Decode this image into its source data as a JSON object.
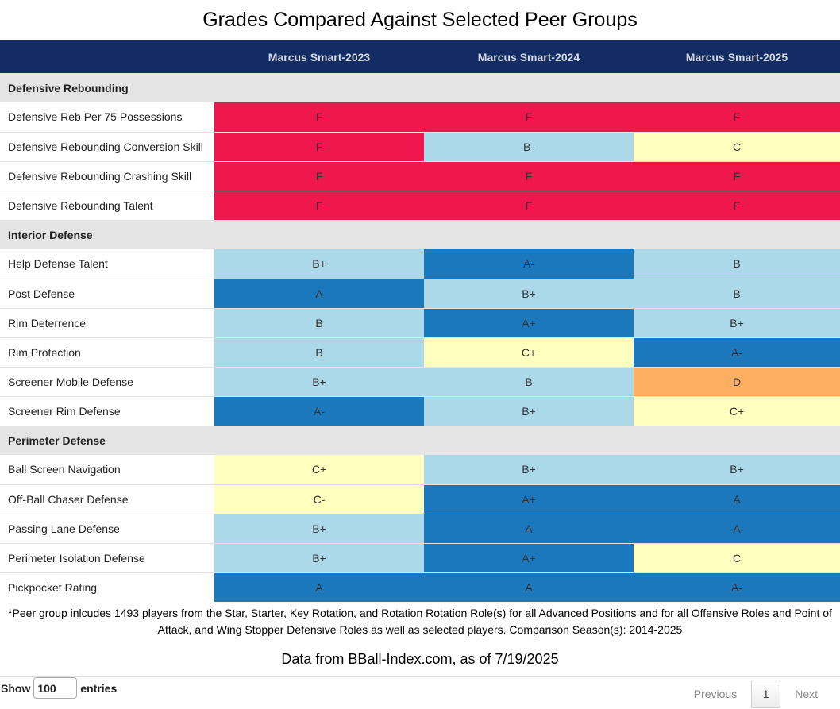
{
  "title": "Grades Compared Against Selected Peer Groups",
  "columns": [
    "",
    "Marcus Smart-2023",
    "Marcus Smart-2024",
    "Marcus Smart-2025"
  ],
  "grade_colors": {
    "F": "#f0174f",
    "D": "#fdae61",
    "C-": "#ffffbf",
    "C": "#ffffbf",
    "C+": "#ffffbf",
    "B-": "#abd9e9",
    "B": "#abd9e9",
    "B+": "#abd9e9",
    "A-": "#1c78bc",
    "A": "#1c78bc",
    "A+": "#1c78bc"
  },
  "sections": [
    {
      "name": "Defensive Rebounding",
      "rows": [
        {
          "metric": "Defensive Reb Per 75 Possessions",
          "grades": [
            "F",
            "F",
            "F"
          ]
        },
        {
          "metric": "Defensive Rebounding Conversion Skill",
          "grades": [
            "F",
            "B-",
            "C"
          ]
        },
        {
          "metric": "Defensive Rebounding Crashing Skill",
          "grades": [
            "F",
            "F",
            "F"
          ]
        },
        {
          "metric": "Defensive Rebounding Talent",
          "grades": [
            "F",
            "F",
            "F"
          ]
        }
      ]
    },
    {
      "name": "Interior Defense",
      "rows": [
        {
          "metric": "Help Defense Talent",
          "grades": [
            "B+",
            "A-",
            "B"
          ]
        },
        {
          "metric": "Post Defense",
          "grades": [
            "A",
            "B+",
            "B"
          ]
        },
        {
          "metric": "Rim Deterrence",
          "grades": [
            "B",
            "A+",
            "B+"
          ]
        },
        {
          "metric": "Rim Protection",
          "grades": [
            "B",
            "C+",
            "A-"
          ]
        },
        {
          "metric": "Screener Mobile Defense",
          "grades": [
            "B+",
            "B",
            "D"
          ]
        },
        {
          "metric": "Screener Rim Defense",
          "grades": [
            "A-",
            "B+",
            "C+"
          ]
        }
      ]
    },
    {
      "name": "Perimeter Defense",
      "rows": [
        {
          "metric": "Ball Screen Navigation",
          "grades": [
            "C+",
            "B+",
            "B+"
          ]
        },
        {
          "metric": "Off-Ball Chaser Defense",
          "grades": [
            "C-",
            "A+",
            "A"
          ]
        },
        {
          "metric": "Passing Lane Defense",
          "grades": [
            "B+",
            "A",
            "A"
          ]
        },
        {
          "metric": "Perimeter Isolation Defense",
          "grades": [
            "B+",
            "A+",
            "C"
          ]
        },
        {
          "metric": "Pickpocket Rating",
          "grades": [
            "A",
            "A",
            "A-"
          ]
        }
      ]
    }
  ],
  "footnote": "*Peer group inlcudes 1493 players from the Star, Starter, Key Rotation, and Rotation Rotation Role(s) for all Advanced Positions and for all Offensive Roles and Point of Attack, and Wing Stopper Defensive Roles as well as selected players. Comparison Season(s): 2014-2025",
  "source": "Data from BBall-Index.com, as of 7/19/2025",
  "length_menu": {
    "prefix": "Show",
    "value": "100",
    "suffix": "entries"
  },
  "pagination": {
    "previous": "Previous",
    "page": "1",
    "next": "Next"
  }
}
